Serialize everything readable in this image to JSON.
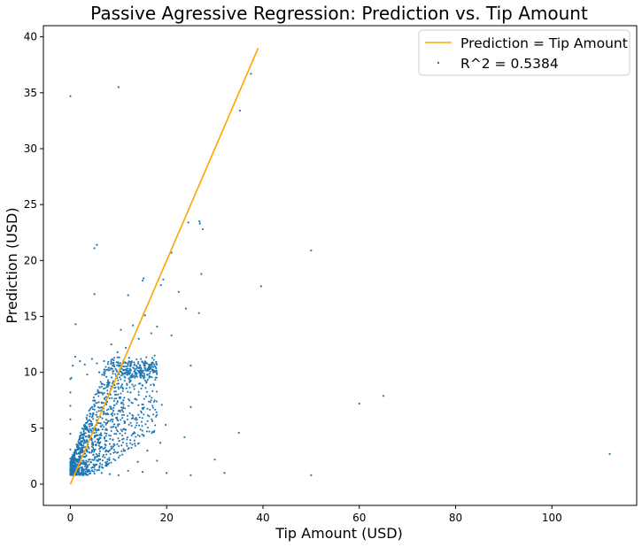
{
  "chart_data": {
    "type": "scatter",
    "title": "Passive Agressive Regression: Prediction vs. Tip Amount",
    "xlabel": "Tip Amount (USD)",
    "ylabel": "Prediction (USD)",
    "xlim": [
      -5.6,
      117.6
    ],
    "ylim": [
      -1.9,
      41.0
    ],
    "x_ticks": [
      0,
      20,
      40,
      60,
      80,
      100
    ],
    "y_ticks": [
      0,
      5,
      10,
      15,
      20,
      25,
      30,
      35,
      40
    ],
    "grid": false,
    "legend_position": "top-right",
    "colors": {
      "points": "#1f77b4",
      "line": "#ffa500",
      "frame": "#000000"
    },
    "series": [
      {
        "name": "Prediction = Tip Amount",
        "kind": "line",
        "points": [
          [
            0,
            0
          ],
          [
            39,
            39
          ]
        ]
      },
      {
        "name": "R^2 = 0.5384",
        "kind": "scatter",
        "points": [
          [
            0.0,
            34.7
          ],
          [
            10.0,
            35.5
          ],
          [
            37.5,
            36.7
          ],
          [
            35.2,
            33.4
          ],
          [
            5.0,
            21.1
          ],
          [
            5.5,
            21.4
          ],
          [
            21.0,
            20.7
          ],
          [
            24.5,
            23.4
          ],
          [
            26.8,
            23.5
          ],
          [
            26.9,
            23.3
          ],
          [
            27.5,
            22.8
          ],
          [
            50.0,
            20.9
          ],
          [
            39.6,
            17.7
          ],
          [
            18.8,
            17.8
          ],
          [
            19.3,
            18.3
          ],
          [
            15.0,
            18.2
          ],
          [
            15.2,
            18.4
          ],
          [
            22.5,
            17.2
          ],
          [
            12.0,
            16.9
          ],
          [
            5.0,
            17.0
          ],
          [
            27.2,
            18.8
          ],
          [
            24.0,
            15.7
          ],
          [
            26.7,
            15.3
          ],
          [
            1.1,
            14.3
          ],
          [
            18.0,
            14.1
          ],
          [
            21.0,
            13.3
          ],
          [
            25.0,
            10.6
          ],
          [
            19.0,
            7.1
          ],
          [
            25.0,
            6.9
          ],
          [
            60.0,
            7.2
          ],
          [
            65.0,
            7.9
          ],
          [
            35.0,
            4.6
          ],
          [
            23.7,
            4.2
          ],
          [
            19.8,
            5.3
          ],
          [
            18.7,
            3.7
          ],
          [
            20.0,
            1.0
          ],
          [
            25.0,
            0.8
          ],
          [
            30.0,
            2.2
          ],
          [
            32.0,
            1.0
          ],
          [
            50.0,
            0.8
          ],
          [
            112.0,
            2.7
          ],
          [
            15.0,
            1.1
          ],
          [
            18.0,
            2.1
          ],
          [
            10.0,
            0.8
          ],
          [
            8.2,
            0.9
          ],
          [
            6.5,
            1.0
          ],
          [
            12.0,
            1.2
          ],
          [
            14.0,
            2.0
          ],
          [
            16.0,
            3.0
          ],
          [
            13.0,
            4.5
          ],
          [
            11.0,
            7.5
          ],
          [
            16.5,
            10.3
          ],
          [
            14.5,
            9.0
          ],
          [
            12.5,
            8.2
          ],
          [
            17.5,
            11.5
          ],
          [
            16.8,
            13.5
          ],
          [
            15.5,
            15.1
          ],
          [
            14.2,
            13.0
          ],
          [
            13.0,
            14.2
          ],
          [
            11.5,
            12.2
          ],
          [
            9.8,
            11.8
          ],
          [
            8.5,
            12.5
          ],
          [
            10.5,
            13.8
          ],
          [
            9.0,
            10.7
          ],
          [
            7.5,
            9.6
          ],
          [
            6.0,
            10.0
          ],
          [
            4.5,
            11.2
          ],
          [
            3.0,
            10.7
          ],
          [
            2.0,
            11.0
          ],
          [
            1.0,
            11.4
          ],
          [
            0.5,
            10.6
          ],
          [
            0.2,
            9.5
          ],
          [
            3.5,
            9.8
          ],
          [
            5.5,
            10.8
          ],
          [
            7.0,
            11.0
          ],
          [
            8.0,
            10.4
          ],
          [
            0.0,
            1.6
          ],
          [
            0.0,
            2.3
          ],
          [
            0.0,
            4.5
          ],
          [
            0.0,
            7.0
          ],
          [
            0.0,
            8.2
          ],
          [
            0.0,
            9.4
          ],
          [
            0.0,
            5.8
          ],
          [
            0.0,
            3.1
          ],
          [
            0.0,
            1.2
          ]
        ],
        "dense_cloud": {
          "description_free": true,
          "count": 1400,
          "x_range": [
            0,
            18
          ],
          "y_min": 0.8,
          "y_max": 11
        }
      }
    ]
  }
}
